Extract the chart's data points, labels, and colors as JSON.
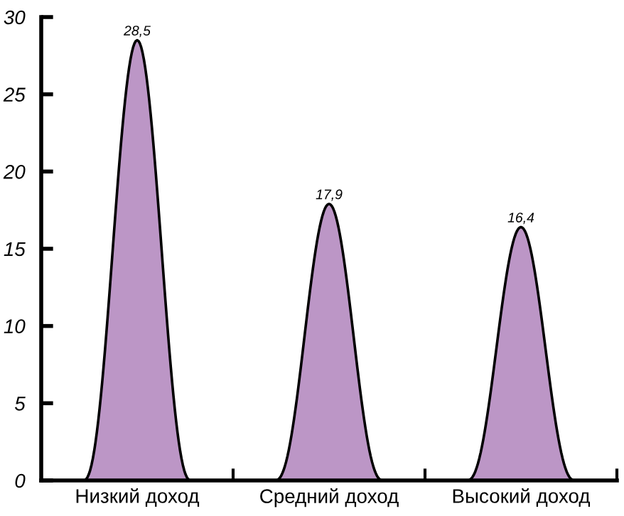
{
  "chart_data": {
    "type": "bar",
    "categories": [
      "Низкий доход",
      "Средний доход",
      "Высокий доход"
    ],
    "values": [
      28.5,
      17.9,
      16.4
    ],
    "color": "#bc96c6",
    "ylim": [
      0,
      30
    ],
    "yticks": [
      0,
      5,
      10,
      15,
      20,
      25,
      30
    ],
    "value_labels": [
      "28,5",
      "17,9",
      "16,4"
    ],
    "grid": false
  }
}
